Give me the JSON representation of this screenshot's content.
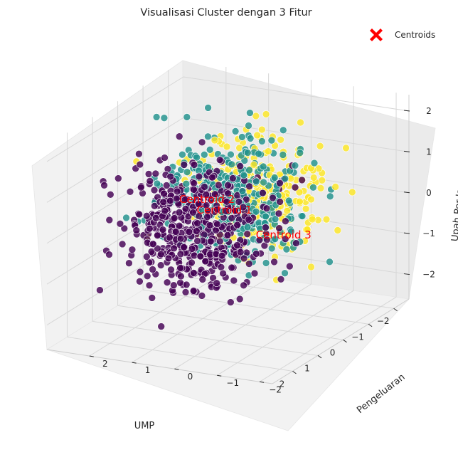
{
  "chart_data": {
    "type": "scatter",
    "projection": "3d",
    "title": "Visualisasi Cluster dengan 3 Fitur",
    "xlabel": "UMP",
    "ylabel": "Pengeluaran",
    "zlabel": "Upah Per Jam",
    "xlim": [
      -2.6,
      2.8
    ],
    "ylim": [
      -2.3,
      3.0
    ],
    "zlim": [
      -2.6,
      2.4
    ],
    "x_ticks": [
      -2,
      -1,
      0,
      1,
      2
    ],
    "y_ticks": [
      -2,
      -1,
      0,
      1,
      2
    ],
    "z_ticks": [
      -2,
      -1,
      0,
      1,
      2
    ],
    "grid": true,
    "legend_position": "top-right",
    "clusters": [
      {
        "id": 1,
        "color": "#440154",
        "center": [
          1.1,
          0.5,
          0.1
        ],
        "spread": [
          0.75,
          0.8,
          0.75
        ],
        "count": 480
      },
      {
        "id": 2,
        "color": "#21918c",
        "center": [
          -0.3,
          0.5,
          0.3
        ],
        "spread": [
          0.5,
          0.75,
          0.7
        ],
        "count": 380
      },
      {
        "id": 3,
        "color": "#fde725",
        "center": [
          -1.4,
          0.5,
          0.0
        ],
        "spread": [
          0.5,
          0.8,
          0.7
        ],
        "count": 280
      }
    ],
    "centroids": [
      {
        "label": "Centroid 1",
        "x": 0.75,
        "y": 0.7,
        "z": 0.3
      },
      {
        "label": "Centroid 2",
        "x": 0.85,
        "y": 1.05,
        "z": 0.55
      },
      {
        "label": "Centroid 3",
        "x": -0.75,
        "y": 0.2,
        "z": -0.8
      }
    ],
    "legend": [
      {
        "label": "Centroids",
        "marker": "X",
        "color": "#ff0000"
      }
    ]
  }
}
